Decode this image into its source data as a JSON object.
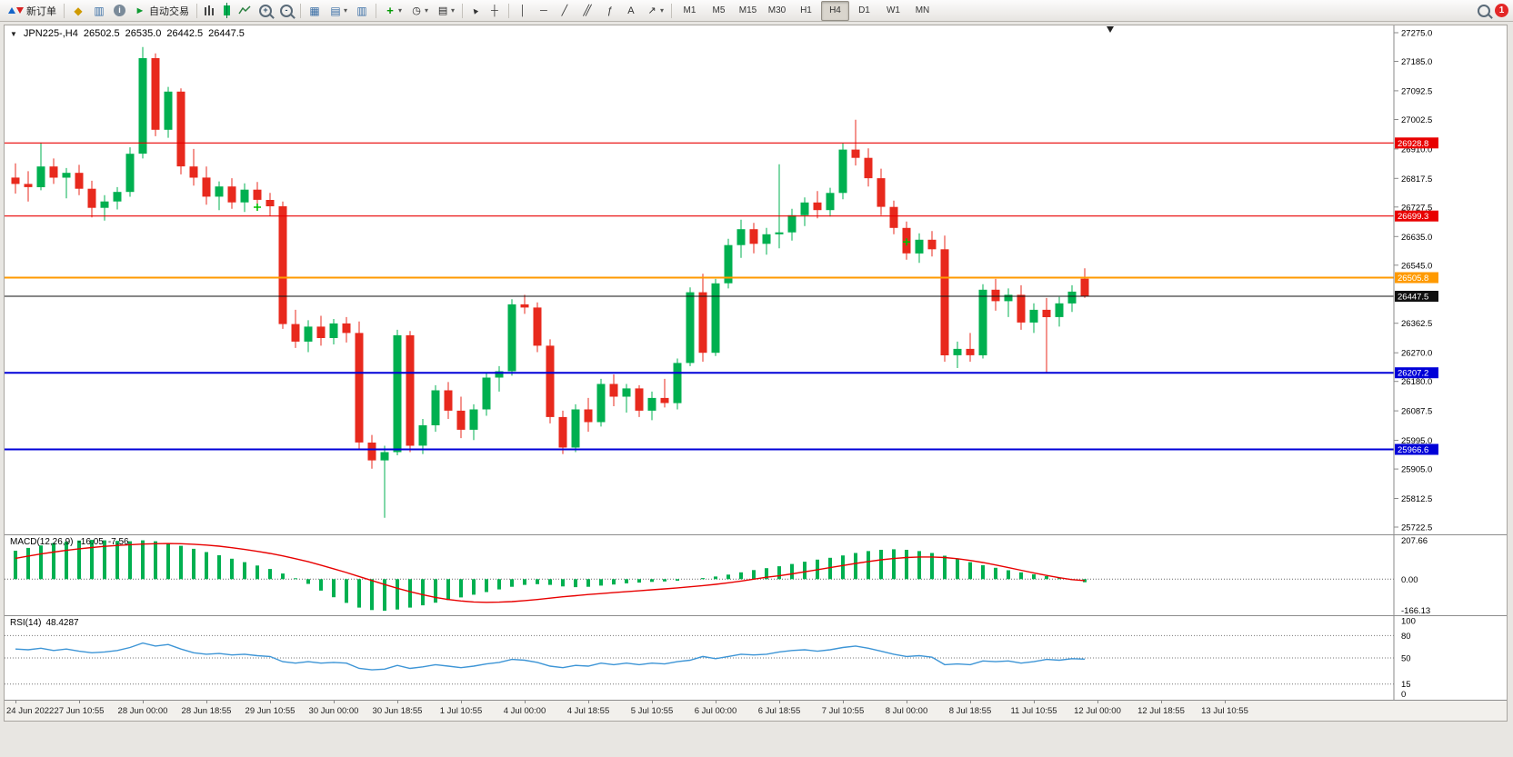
{
  "toolbar": {
    "new_order": "新订单",
    "autotrading": "自动交易",
    "timeframes": [
      "M1",
      "M5",
      "M15",
      "M30",
      "H1",
      "H4",
      "D1",
      "W1",
      "MN"
    ],
    "active_timeframe": "H4",
    "badge_count": "1"
  },
  "icons": {
    "symbol_dropdown": "▼",
    "dropdown": "▾",
    "metaeditor": "◆",
    "market_watch": "▥",
    "help": "i",
    "play": "►",
    "tile_windows": "▦",
    "cascade_windows": "▤",
    "window_list": "▥",
    "indicators_plus": "+",
    "periods_clock": "◷",
    "templates": "▤",
    "cursor": "▲",
    "crosshair": "┼",
    "vertical_line": "│",
    "horizontal_line": "─",
    "trendline": "╱",
    "channel": "╱╱",
    "fibonacci": "ƒ",
    "text_tool": "A",
    "arrows": "↗",
    "zoom_in_sign": "+",
    "zoom_out_sign": "-"
  },
  "chart_data": {
    "type": "candlestick",
    "symbol": "JPN225-",
    "period": "H4",
    "header": {
      "symbol_period": "JPN225-,H4",
      "open": "26502.5",
      "high": "26535.0",
      "low": "26442.5",
      "close": "26447.5"
    },
    "price_axis": {
      "max": 27275.0,
      "min": 25722.5,
      "ticks": [
        27275.0,
        27185.0,
        27092.5,
        27002.5,
        26910.0,
        26817.5,
        26727.5,
        26635.0,
        26545.0,
        26362.5,
        26270.0,
        26180.0,
        26087.5,
        25995.0,
        25905.0,
        25812.5,
        25722.5
      ]
    },
    "hlines": [
      {
        "price": 26928.8,
        "color": "#e80000",
        "width": 1.2,
        "role": "resistance"
      },
      {
        "price": 26699.3,
        "color": "#e80000",
        "width": 1.2,
        "role": "resistance"
      },
      {
        "price": 26505.8,
        "color": "#ff9a00",
        "width": 2,
        "role": "level"
      },
      {
        "price": 26447.5,
        "color": "#101010",
        "width": 1,
        "role": "current-price"
      },
      {
        "price": 26207.2,
        "color": "#0000d8",
        "width": 2,
        "role": "support"
      },
      {
        "price": 25966.6,
        "color": "#0000d8",
        "width": 2,
        "role": "support"
      }
    ],
    "up_color": "#00b050",
    "down_color": "#e8291d",
    "candles": [
      [
        26820,
        26865,
        26770,
        26800
      ],
      [
        26800,
        26840,
        26745,
        26790
      ],
      [
        26790,
        26930,
        26780,
        26855
      ],
      [
        26855,
        26880,
        26800,
        26820
      ],
      [
        26820,
        26850,
        26755,
        26835
      ],
      [
        26835,
        26860,
        26765,
        26785
      ],
      [
        26785,
        26810,
        26695,
        26725
      ],
      [
        26725,
        26765,
        26685,
        26745
      ],
      [
        26745,
        26790,
        26720,
        26775
      ],
      [
        26775,
        26915,
        26760,
        26895
      ],
      [
        26895,
        27230,
        26880,
        27195
      ],
      [
        27195,
        27210,
        26950,
        26970
      ],
      [
        26970,
        27105,
        26945,
        27090
      ],
      [
        27090,
        27100,
        26830,
        26855
      ],
      [
        26855,
        26910,
        26795,
        26820
      ],
      [
        26820,
        26855,
        26735,
        26760
      ],
      [
        26760,
        26808,
        26718,
        26792
      ],
      [
        26792,
        26818,
        26722,
        26742
      ],
      [
        26742,
        26802,
        26712,
        26782
      ],
      [
        26782,
        26806,
        26726,
        26750
      ],
      [
        26750,
        26772,
        26700,
        26730
      ],
      [
        26730,
        26745,
        26345,
        26360
      ],
      [
        26360,
        26405,
        26285,
        26305
      ],
      [
        26305,
        26372,
        26272,
        26352
      ],
      [
        26352,
        26386,
        26292,
        26316
      ],
      [
        26316,
        26376,
        26296,
        26362
      ],
      [
        26362,
        26382,
        26302,
        26332
      ],
      [
        26332,
        26368,
        25968,
        25988
      ],
      [
        25988,
        26012,
        25906,
        25932
      ],
      [
        25932,
        25978,
        25752,
        25958
      ],
      [
        25958,
        26342,
        25948,
        26325
      ],
      [
        26325,
        26338,
        25958,
        25978
      ],
      [
        25978,
        26062,
        25952,
        26042
      ],
      [
        26042,
        26168,
        26022,
        26152
      ],
      [
        26152,
        26178,
        26062,
        26088
      ],
      [
        26088,
        26132,
        26002,
        26028
      ],
      [
        26028,
        26108,
        25996,
        26092
      ],
      [
        26092,
        26208,
        26072,
        26192
      ],
      [
        26192,
        26228,
        26148,
        26212
      ],
      [
        26212,
        26438,
        26198,
        26422
      ],
      [
        26422,
        26452,
        26392,
        26412
      ],
      [
        26412,
        26428,
        26272,
        26292
      ],
      [
        26292,
        26312,
        26048,
        26068
      ],
      [
        26068,
        26088,
        25952,
        25972
      ],
      [
        25972,
        26108,
        25958,
        26092
      ],
      [
        26092,
        26128,
        26022,
        26052
      ],
      [
        26052,
        26188,
        26038,
        26172
      ],
      [
        26172,
        26202,
        26102,
        26132
      ],
      [
        26132,
        26172,
        26082,
        26158
      ],
      [
        26158,
        26168,
        26068,
        26088
      ],
      [
        26088,
        26148,
        26058,
        26128
      ],
      [
        26128,
        26188,
        26098,
        26112
      ],
      [
        26112,
        26252,
        26092,
        26238
      ],
      [
        26238,
        26475,
        26228,
        26460
      ],
      [
        26460,
        26518,
        26242,
        26270
      ],
      [
        26270,
        26502,
        26260,
        26488
      ],
      [
        26488,
        26628,
        26472,
        26608
      ],
      [
        26608,
        26688,
        26568,
        26658
      ],
      [
        26658,
        26678,
        26582,
        26612
      ],
      [
        26612,
        26662,
        26578,
        26642
      ],
      [
        26642,
        26862,
        26598,
        26648
      ],
      [
        26648,
        26722,
        26622,
        26702
      ],
      [
        26702,
        26758,
        26668,
        26742
      ],
      [
        26742,
        26778,
        26692,
        26718
      ],
      [
        26718,
        26788,
        26698,
        26772
      ],
      [
        26772,
        26928,
        26752,
        26908
      ],
      [
        26908,
        27002,
        26858,
        26882
      ],
      [
        26882,
        26912,
        26792,
        26818
      ],
      [
        26818,
        26848,
        26702,
        26728
      ],
      [
        26728,
        26748,
        26642,
        26662
      ],
      [
        26662,
        26682,
        26562,
        26582
      ],
      [
        26582,
        26645,
        26552,
        26625
      ],
      [
        26625,
        26652,
        26572,
        26595
      ],
      [
        26595,
        26638,
        26242,
        26262
      ],
      [
        26262,
        26305,
        26222,
        26282
      ],
      [
        26282,
        26332,
        26242,
        26262
      ],
      [
        26262,
        26485,
        26252,
        26468
      ],
      [
        26468,
        26502,
        26402,
        26432
      ],
      [
        26432,
        26472,
        26382,
        26452
      ],
      [
        26452,
        26482,
        26342,
        26365
      ],
      [
        26365,
        26425,
        26332,
        26405
      ],
      [
        26405,
        26442,
        26208,
        26382
      ],
      [
        26382,
        26445,
        26352,
        26425
      ],
      [
        26425,
        26482,
        26398,
        26462
      ],
      [
        26502.5,
        26535.0,
        26442.5,
        26447.5
      ]
    ],
    "plus_markers": [
      {
        "bar": 19,
        "price": 26727,
        "color": "#00c000"
      },
      {
        "bar": 70,
        "price": 26618,
        "color": "#00c000"
      }
    ],
    "shift_marker_bar": 86,
    "label_every_n_bars": 5,
    "time_labels": [
      "24 Jun 2022",
      "27 Jun 10:55",
      "28 Jun 00:00",
      "28 Jun 18:55",
      "29 Jun 10:55",
      "30 Jun 00:00",
      "30 Jun 18:55",
      "1 Jul 10:55",
      "4 Jul 00:00",
      "4 Jul 18:55",
      "5 Jul 10:55",
      "6 Jul 00:00",
      "6 Jul 18:55",
      "7 Jul 10:55",
      "8 Jul 00:00",
      "8 Jul 18:55",
      "11 Jul 10:55",
      "12 Jul 00:00",
      "12 Jul 18:55",
      "13 Jul 10:55"
    ],
    "macd": {
      "label": "MACD(12,26,9)",
      "value_main": "-16.05",
      "value_signal": "-7.56",
      "axis_max": 207.66,
      "axis_min": -166.13,
      "axis_labels": [
        "207.66",
        "0.00",
        "-166.13"
      ],
      "hist_color": "#00b050",
      "signal_color": "#e80000",
      "histogram": [
        150,
        165,
        178,
        190,
        198,
        204,
        207,
        205,
        202,
        200,
        205,
        200,
        190,
        176,
        160,
        143,
        126,
        108,
        90,
        72,
        54,
        30,
        5,
        -25,
        -60,
        -95,
        -125,
        -150,
        -163,
        -166,
        -160,
        -150,
        -138,
        -124,
        -110,
        -96,
        -82,
        -68,
        -54,
        -40,
        -30,
        -26,
        -30,
        -38,
        -42,
        -40,
        -34,
        -28,
        -22,
        -18,
        -14,
        -12,
        -8,
        0,
        6,
        14,
        24,
        36,
        48,
        58,
        68,
        80,
        92,
        103,
        113,
        125,
        138,
        148,
        155,
        158,
        155,
        148,
        138,
        124,
        108,
        90,
        74,
        60,
        47,
        36,
        26,
        16,
        6,
        -4,
        -16.05
      ],
      "signal": [
        110,
        122,
        133,
        143,
        152,
        160,
        167,
        173,
        178,
        182,
        185,
        187,
        188,
        187,
        184,
        180,
        174,
        166,
        157,
        147,
        136,
        123,
        108,
        92,
        74,
        55,
        35,
        14,
        -7,
        -28,
        -48,
        -66,
        -82,
        -96,
        -107,
        -115,
        -120,
        -122,
        -121,
        -118,
        -113,
        -107,
        -100,
        -93,
        -87,
        -81,
        -76,
        -71,
        -66,
        -61,
        -56,
        -51,
        -46,
        -40,
        -34,
        -27,
        -19,
        -10,
        0,
        10,
        18,
        28,
        39,
        50,
        61,
        72,
        83,
        93,
        102,
        109,
        114,
        117,
        117,
        114,
        108,
        99,
        88,
        75,
        61,
        47,
        33,
        20,
        8,
        -2,
        -7.56
      ]
    },
    "rsi": {
      "label": "RSI(14)",
      "value": "48.4287",
      "levels": [
        80,
        50,
        15
      ],
      "axis_labels": [
        "100",
        "80",
        "50",
        "15",
        "0"
      ],
      "color": "#3d95d6",
      "series": [
        62,
        61,
        63,
        60,
        62,
        59,
        57,
        58,
        60,
        64,
        70,
        66,
        68,
        62,
        57,
        55,
        56,
        54,
        55,
        53,
        52,
        45,
        43,
        45,
        43,
        44,
        43,
        36,
        34,
        35,
        40,
        36,
        38,
        41,
        39,
        37,
        39,
        42,
        44,
        48,
        47,
        44,
        39,
        37,
        40,
        39,
        43,
        41,
        43,
        41,
        43,
        42,
        45,
        47,
        52,
        49,
        52,
        55,
        54,
        55,
        58,
        60,
        61,
        59,
        61,
        64,
        66,
        63,
        59,
        55,
        52,
        53,
        51,
        41,
        42,
        41,
        46,
        45,
        46,
        43,
        45,
        48,
        47,
        49,
        48.4287
      ]
    }
  }
}
